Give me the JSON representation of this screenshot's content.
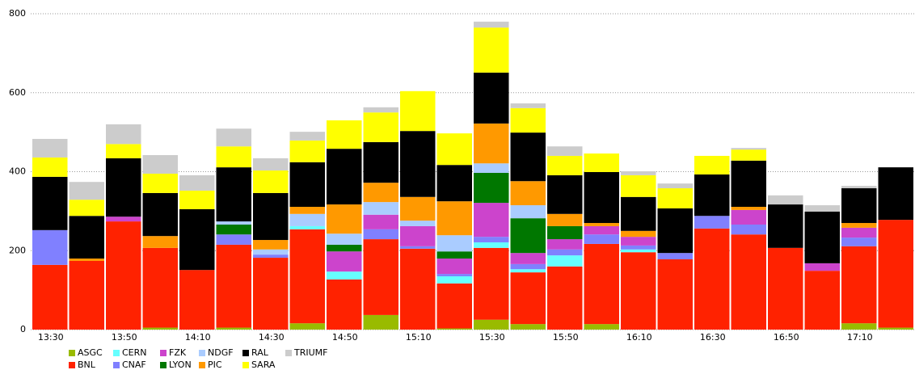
{
  "chart_data": {
    "type": "stacked_bar",
    "categories": [
      "13:30",
      null,
      "13:50",
      null,
      "14:10",
      null,
      "14:30",
      null,
      "14:50",
      null,
      "15:10",
      null,
      "15:30",
      null,
      "15:50",
      null,
      "16:10",
      null,
      "16:30",
      null,
      "16:50",
      null,
      "17:10",
      null
    ],
    "series": [
      {
        "name": "ASGC",
        "color": "#99bb00",
        "values": [
          0,
          0,
          0,
          5,
          0,
          5,
          0,
          16,
          0,
          37,
          0,
          3,
          25,
          14,
          0,
          14,
          0,
          0,
          0,
          0,
          0,
          0,
          16,
          5
        ]
      },
      {
        "name": "BNL",
        "color": "#ff2200",
        "values": [
          164,
          174,
          274,
          202,
          151,
          210,
          182,
          238,
          127,
          192,
          205,
          114,
          182,
          131,
          160,
          203,
          196,
          178,
          256,
          241,
          207,
          149,
          195,
          273
        ]
      },
      {
        "name": "CERN",
        "color": "#66ffff",
        "values": [
          0,
          0,
          0,
          0,
          0,
          0,
          0,
          8,
          20,
          0,
          0,
          18,
          14,
          8,
          28,
          0,
          7,
          0,
          0,
          0,
          0,
          0,
          0,
          0
        ]
      },
      {
        "name": "CNAF",
        "color": "#8080ff",
        "values": [
          88,
          0,
          0,
          0,
          0,
          26,
          8,
          0,
          0,
          25,
          6,
          6,
          14,
          13,
          15,
          24,
          10,
          16,
          32,
          25,
          0,
          0,
          22,
          0
        ]
      },
      {
        "name": "FZK",
        "color": "#cc44cc",
        "values": [
          0,
          0,
          12,
          0,
          0,
          0,
          0,
          0,
          51,
          37,
          51,
          39,
          86,
          28,
          26,
          21,
          22,
          0,
          0,
          37,
          0,
          19,
          25,
          0
        ]
      },
      {
        "name": "LYON",
        "color": "#007700",
        "values": [
          0,
          0,
          0,
          0,
          0,
          25,
          0,
          0,
          17,
          0,
          0,
          18,
          76,
          88,
          33,
          0,
          0,
          0,
          0,
          0,
          0,
          0,
          0,
          0
        ]
      },
      {
        "name": "NDGF",
        "color": "#aaccff",
        "values": [
          0,
          0,
          0,
          0,
          0,
          8,
          13,
          31,
          28,
          32,
          14,
          41,
          24,
          33,
          0,
          0,
          0,
          0,
          0,
          0,
          0,
          0,
          0,
          0
        ]
      },
      {
        "name": "PIC",
        "color": "#ff9900",
        "values": [
          0,
          6,
          0,
          30,
          0,
          0,
          24,
          18,
          74,
          49,
          60,
          86,
          101,
          61,
          31,
          8,
          15,
          0,
          0,
          8,
          0,
          0,
          12,
          0
        ]
      },
      {
        "name": "RAL",
        "color": "#000000",
        "values": [
          135,
          108,
          148,
          109,
          154,
          137,
          119,
          113,
          141,
          103,
          167,
          92,
          129,
          123,
          98,
          129,
          86,
          113,
          105,
          117,
          110,
          131,
          88,
          133
        ]
      },
      {
        "name": "SARA",
        "color": "#ffff00",
        "values": [
          49,
          41,
          36,
          49,
          47,
          53,
          57,
          55,
          72,
          75,
          101,
          80,
          114,
          62,
          49,
          47,
          55,
          51,
          47,
          28,
          0,
          0,
          0,
          0
        ]
      },
      {
        "name": "TRIUMF",
        "color": "#cccccc",
        "values": [
          47,
          45,
          50,
          47,
          39,
          45,
          31,
          22,
          0,
          13,
          0,
          0,
          15,
          12,
          24,
          0,
          10,
          12,
          0,
          4,
          23,
          16,
          6,
          0
        ]
      }
    ],
    "ylim": [
      0,
      800
    ],
    "yticks": [
      0,
      200,
      400,
      600,
      800
    ],
    "grid": true
  }
}
